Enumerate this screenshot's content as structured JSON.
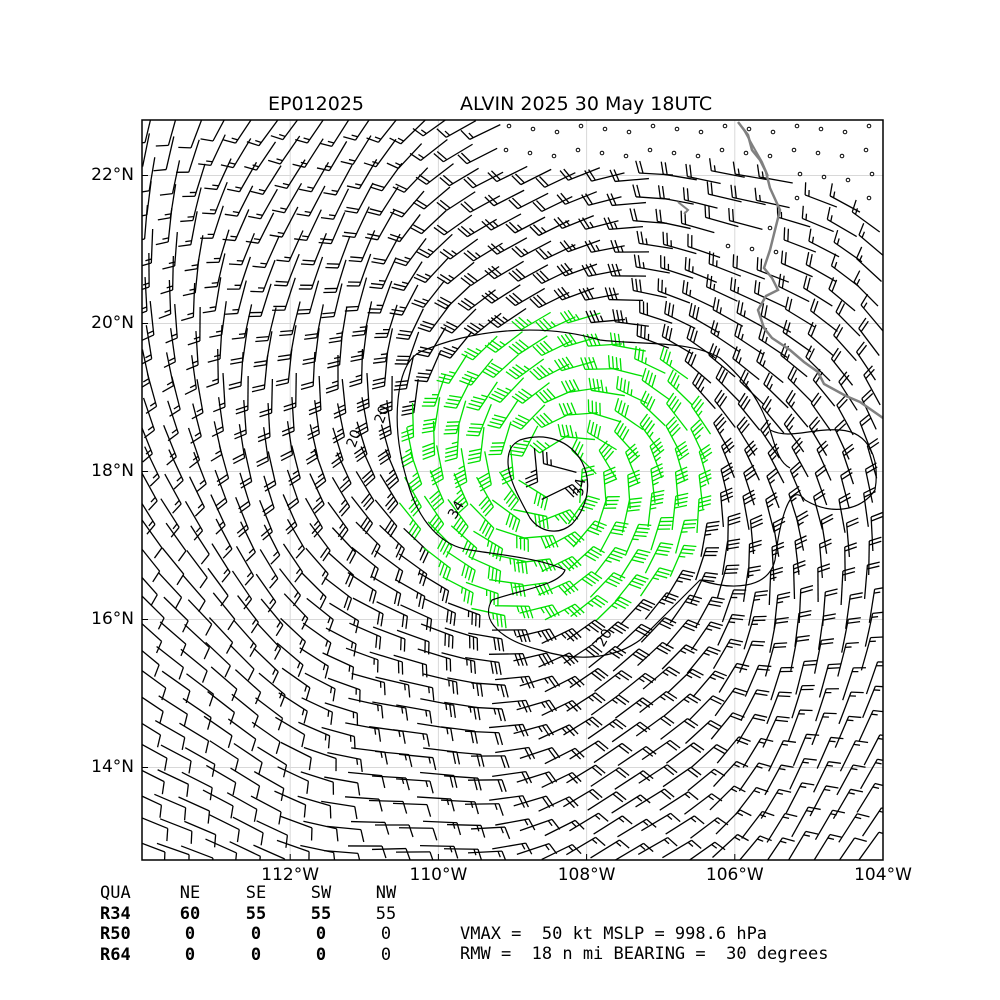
{
  "header": {
    "storm_id": "EP012025",
    "storm_title": "ALVIN 2025 30 May 18UTC"
  },
  "axes": {
    "lat_ticks": [
      "22°N",
      "20°N",
      "18°N",
      "16°N",
      "14°N"
    ],
    "lat_values": [
      22,
      20,
      18,
      16,
      14
    ],
    "lon_ticks": [
      "112°W",
      "110°W",
      "108°W",
      "106°W",
      "104°W"
    ],
    "lon_values": [
      -112,
      -110,
      -108,
      -106,
      -104
    ],
    "lat_range": [
      12.75,
      22.75
    ],
    "lon_range": [
      -114.0,
      -104.0
    ],
    "grid": true
  },
  "storm": {
    "center_lat": 18.0,
    "center_lon": -108.4,
    "contour_labels": [
      "34",
      "34",
      "20",
      "20",
      "20"
    ],
    "barb_colors": {
      "calm_or_weak": "#000000",
      "gale": "#00e000",
      "storm": "#e8b000"
    },
    "coastline_color": "#808080",
    "contour_color": "#000000"
  },
  "radii_table": {
    "header": [
      "QUA",
      "NE",
      "SE",
      "SW",
      "NW"
    ],
    "rows": [
      {
        "label": "R34",
        "values": [
          "60",
          "55",
          "55",
          "55"
        ]
      },
      {
        "label": "R50",
        "values": [
          "0",
          "0",
          "0",
          "0"
        ]
      },
      {
        "label": "R64",
        "values": [
          "0",
          "0",
          "0",
          "0"
        ]
      }
    ]
  },
  "stats": {
    "line1": "VMAX =  50 kt MSLP = 998.6 hPa",
    "line2": "RMW =  18 n mi BEARING =  30 degrees"
  }
}
